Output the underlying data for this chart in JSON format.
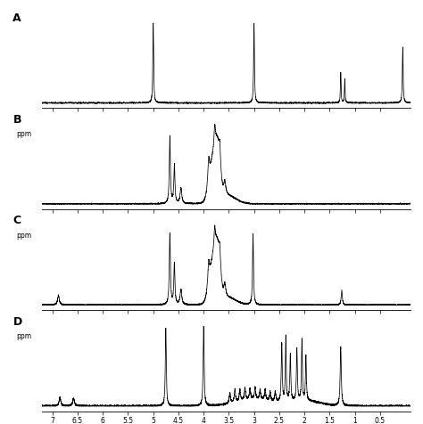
{
  "panels": [
    "A",
    "B",
    "C",
    "D"
  ],
  "xlim": [
    7.2,
    -0.1
  ],
  "xlabel": "ppm",
  "xticks": [
    7.0,
    6.5,
    6.0,
    5.5,
    5.0,
    4.5,
    4.0,
    3.5,
    3.0,
    2.5,
    2.0,
    1.5,
    1.0,
    0.5
  ],
  "bg_color": "#ffffff",
  "line_color": "#000000",
  "figsize": [
    4.74,
    4.77
  ],
  "dpi": 100
}
